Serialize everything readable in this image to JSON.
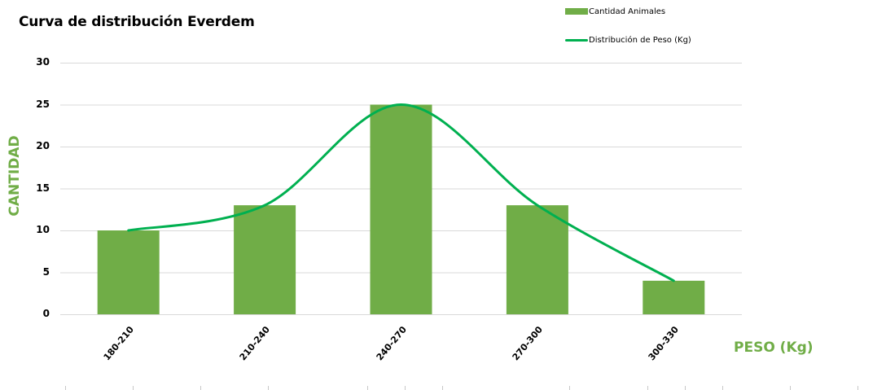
{
  "chart_data": {
    "type": "bar",
    "title": "Curva de distribución Everdem",
    "xlabel": "PESO (Kg)",
    "ylabel": "CANTIDAD",
    "ylim": [
      0,
      30
    ],
    "yticks": [
      "0",
      "5",
      "10",
      "15",
      "20",
      "25",
      "30"
    ],
    "grid": true,
    "legend_position": "top-right",
    "categories": [
      "180-210",
      "210-240",
      "240-270",
      "270-300",
      "300-330"
    ],
    "series": [
      {
        "name": "Cantidad Animales",
        "type": "bar",
        "values": [
          10,
          13,
          25,
          13,
          4
        ],
        "color": "#70AD47"
      },
      {
        "name": "Distribución de Peso (Kg)",
        "type": "line",
        "smooth": true,
        "values": [
          10,
          13,
          25,
          13,
          4
        ],
        "color": "#00B050"
      }
    ]
  },
  "colors": {
    "bar": "#70AD47",
    "line": "#00B050",
    "axis_title": "#70AD47",
    "grid": "#D9D9D9"
  }
}
